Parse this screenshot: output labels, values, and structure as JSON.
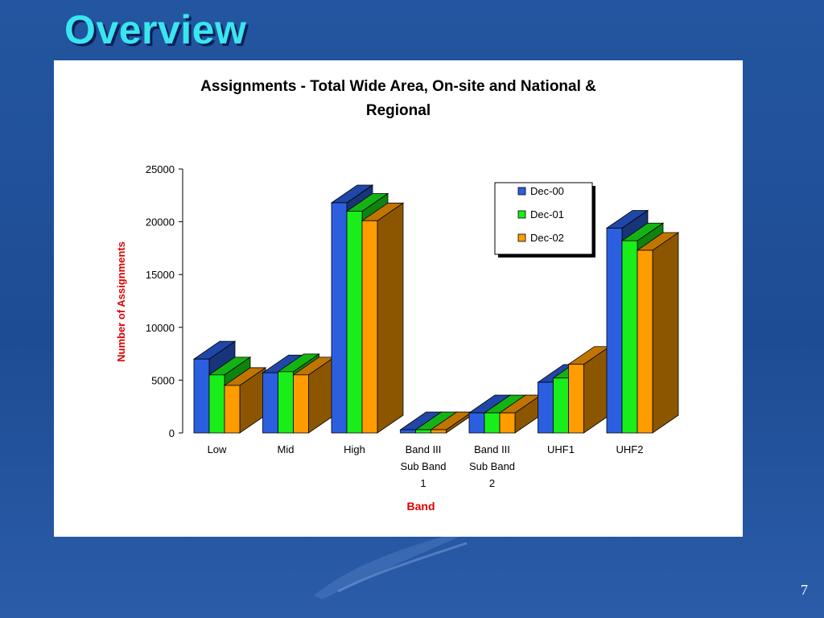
{
  "slide": {
    "title": "Overview",
    "page_number": "7"
  },
  "colors": {
    "background": "#1f4f9a",
    "title": "#39e6f0",
    "axis_title": "#e00000",
    "panel": "#ffffff"
  },
  "chart_data": {
    "type": "bar",
    "title_line1": "Assignments - Total Wide Area, On-site and National &",
    "title_line2": "Regional",
    "xlabel": "Band",
    "ylabel": "Number of Assignments",
    "ylim": [
      0,
      25000
    ],
    "yticks": [
      0,
      5000,
      10000,
      15000,
      20000,
      25000
    ],
    "categories": [
      [
        "Low"
      ],
      [
        "Mid"
      ],
      [
        "High"
      ],
      [
        "Band III",
        "Sub Band",
        "1"
      ],
      [
        "Band III",
        "Sub Band",
        "2"
      ],
      [
        "UHF1"
      ],
      [
        "UHF2"
      ]
    ],
    "series": [
      {
        "name": "Dec-00",
        "color": "#2b5fe0",
        "values": [
          7000,
          5700,
          21800,
          300,
          1900,
          4800,
          19400
        ]
      },
      {
        "name": "Dec-01",
        "color": "#1aee1a",
        "values": [
          5500,
          5800,
          21000,
          300,
          1900,
          5200,
          18200
        ]
      },
      {
        "name": "Dec-02",
        "color": "#ff9c00",
        "values": [
          4500,
          5500,
          20100,
          300,
          1900,
          6500,
          17300
        ]
      }
    ],
    "legend_position": "top-right",
    "grid": false,
    "style": "3d-clustered-bar"
  }
}
